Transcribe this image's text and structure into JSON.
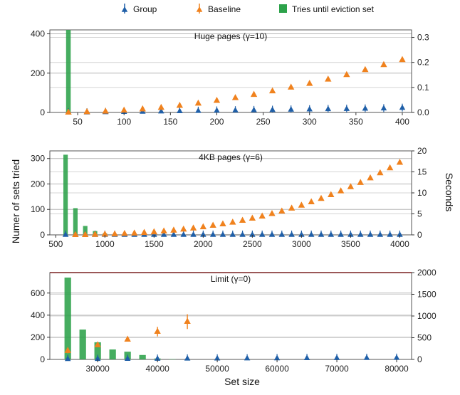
{
  "legend": {
    "items": [
      {
        "label": "Group",
        "color": "#1f5fa8",
        "marker": "triangle-with-errorbar"
      },
      {
        "label": "Baseline",
        "color": "#f0821e",
        "marker": "triangle-with-errorbar"
      },
      {
        "label": "Tries until eviction set",
        "color": "#2ca24a",
        "marker": "square"
      }
    ]
  },
  "axes_labels": {
    "x": "Set size",
    "y_left": "Numer of sets tried",
    "y_right": "Seconds"
  },
  "chart_data": [
    {
      "type": "bar",
      "title": "Huge pages (γ=10)",
      "xlim": [
        20,
        410
      ],
      "xticks": [
        50,
        100,
        150,
        200,
        250,
        300,
        350,
        400
      ],
      "ylim_left": [
        0,
        420
      ],
      "yticks_left": [
        0,
        200,
        400
      ],
      "ylim_right": [
        0,
        0.33
      ],
      "yticks_right": [
        0.0,
        0.1,
        0.2,
        0.3
      ],
      "bar_width": 5,
      "bars": {
        "name": "Tries until eviction set",
        "x": [
          40
        ],
        "values": [
          420
        ]
      },
      "group": {
        "name": "Group",
        "x": [
          40,
          60,
          80,
          100,
          120,
          140,
          160,
          180,
          200,
          220,
          240,
          260,
          280,
          300,
          320,
          340,
          360,
          380,
          400
        ],
        "seconds": [
          0.0,
          0.0,
          0.001,
          0.002,
          0.003,
          0.004,
          0.005,
          0.006,
          0.007,
          0.008,
          0.009,
          0.01,
          0.011,
          0.012,
          0.013,
          0.014,
          0.015,
          0.016,
          0.018
        ]
      },
      "baseline": {
        "name": "Baseline",
        "x": [
          40,
          60,
          80,
          100,
          120,
          140,
          160,
          180,
          200,
          220,
          240,
          260,
          280,
          300,
          320,
          340,
          360,
          380,
          400
        ],
        "seconds": [
          0.0,
          0.002,
          0.004,
          0.008,
          0.013,
          0.019,
          0.027,
          0.036,
          0.047,
          0.058,
          0.071,
          0.085,
          0.1,
          0.115,
          0.132,
          0.15,
          0.17,
          0.19,
          0.21
        ]
      },
      "grid": true
    },
    {
      "type": "bar",
      "title": "4KB pages (γ=6)",
      "xlim": [
        440,
        4120
      ],
      "xticks": [
        500,
        1000,
        1500,
        2000,
        2500,
        3000,
        3500,
        4000
      ],
      "ylim_left": [
        0,
        330
      ],
      "yticks_left": [
        0,
        100,
        200,
        300
      ],
      "ylim_right": [
        0,
        20
      ],
      "yticks_right": [
        0,
        5,
        10,
        15,
        20
      ],
      "bar_width": 45,
      "bars": {
        "name": "Tries until eviction set",
        "x": [
          600,
          700,
          800,
          900,
          1000,
          1100,
          1200
        ],
        "values": [
          315,
          105,
          35,
          15,
          6,
          3,
          1
        ]
      },
      "group": {
        "name": "Group",
        "x": [
          600,
          700,
          800,
          900,
          1000,
          1100,
          1200,
          1300,
          1400,
          1500,
          1600,
          1700,
          1800,
          1900,
          2000,
          2100,
          2200,
          2300,
          2400,
          2500,
          2600,
          2700,
          2800,
          2900,
          3000,
          3100,
          3200,
          3300,
          3400,
          3500,
          3600,
          3700,
          3800,
          3900,
          4000
        ],
        "seconds": [
          0.0,
          0.0,
          0.0,
          0.0,
          0.0,
          0.0,
          0.0,
          0.0,
          0.0,
          0.0,
          0.0,
          0.0,
          0.0,
          0.0,
          0.0,
          0.0,
          0.0,
          0.0,
          0.0,
          0.0,
          0.0,
          0.0,
          0.0,
          0.0,
          0.0,
          0.0,
          0.0,
          0.0,
          0.0,
          0.0,
          0.0,
          0.0,
          0.0,
          0.0,
          0.0
        ]
      },
      "baseline": {
        "name": "Baseline",
        "x": [
          700,
          800,
          900,
          1000,
          1100,
          1200,
          1300,
          1400,
          1500,
          1600,
          1700,
          1800,
          1900,
          2000,
          2100,
          2200,
          2300,
          2400,
          2500,
          2600,
          2700,
          2800,
          2900,
          3000,
          3100,
          3200,
          3300,
          3400,
          3500,
          3600,
          3700,
          3800,
          3900,
          4000
        ],
        "seconds": [
          0.0,
          0.0,
          0.05,
          0.1,
          0.15,
          0.25,
          0.35,
          0.5,
          0.65,
          0.85,
          1.05,
          1.3,
          1.55,
          1.85,
          2.2,
          2.55,
          2.95,
          3.4,
          3.9,
          4.4,
          5.0,
          5.6,
          6.3,
          7.0,
          7.8,
          8.6,
          9.5,
          10.4,
          11.4,
          12.4,
          13.5,
          14.7,
          15.9,
          17.2
        ]
      },
      "grid": true
    },
    {
      "type": "bar",
      "title": "Limit (γ=0)",
      "xlim": [
        22000,
        82500
      ],
      "xticks": [
        30000,
        40000,
        50000,
        60000,
        70000,
        80000
      ],
      "ylim_left": [
        0,
        785
      ],
      "yticks_left": [
        0,
        200,
        400,
        600
      ],
      "ylim_right": [
        0,
        2000
      ],
      "yticks_right": [
        0,
        500,
        1000,
        1500,
        2000
      ],
      "bar_width": 1100,
      "bars": {
        "name": "Tries until eviction set",
        "x": [
          25000,
          27500,
          30000,
          32500,
          35000,
          37500,
          40000,
          42500
        ],
        "values": [
          740,
          270,
          155,
          90,
          70,
          40,
          8,
          3
        ]
      },
      "group": {
        "name": "Group",
        "x": [
          25000,
          30000,
          35000,
          40000,
          45000,
          50000,
          55000,
          60000,
          65000,
          70000,
          75000,
          80000
        ],
        "seconds": [
          8,
          10,
          12,
          15,
          18,
          20,
          22,
          25,
          28,
          30,
          33,
          35
        ]
      },
      "baseline": {
        "name": "Baseline",
        "x": [
          25000,
          30000,
          35000,
          40000,
          45000
        ],
        "seconds": [
          200,
          330,
          460,
          640,
          870
        ],
        "err": [
          60,
          30,
          40,
          110,
          170
        ]
      },
      "grid": true
    }
  ]
}
